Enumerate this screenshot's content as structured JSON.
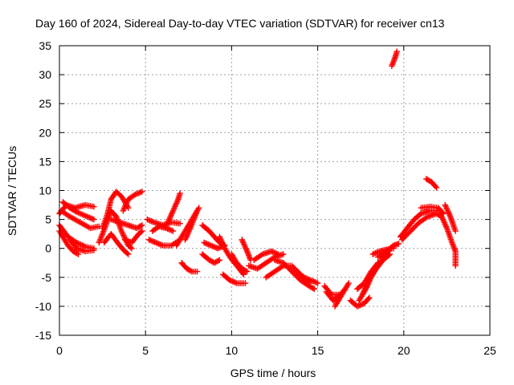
{
  "chart_data": {
    "type": "scatter",
    "title": "Day 160 of 2024, Sidereal Day-to-day VTEC variation (SDTVAR) for receiver cn13",
    "xlabel": "GPS time / hours",
    "ylabel": "SDTVAR / TECUs",
    "xlim": [
      0,
      25
    ],
    "ylim": [
      -15,
      35
    ],
    "xticks": [
      "0",
      "5",
      "10",
      "15",
      "20",
      "25"
    ],
    "yticks": [
      "-15",
      "-10",
      "-5",
      "0",
      "5",
      "10",
      "15",
      "20",
      "25",
      "30",
      "35"
    ],
    "grid": true,
    "marker": "+",
    "series": [
      {
        "name": "SDTVAR",
        "color": "#ff0000",
        "tracks": [
          [
            [
              0.0,
              6.0
            ],
            [
              0.4,
              7.5
            ],
            [
              0.9,
              7.0
            ],
            [
              1.5,
              7.5
            ],
            [
              2.0,
              7.2
            ]
          ],
          [
            [
              0.0,
              4.0
            ],
            [
              0.5,
              2.0
            ],
            [
              1.0,
              1.0
            ],
            [
              1.5,
              0.3
            ],
            [
              2.0,
              0.0
            ]
          ],
          [
            [
              0.0,
              3.0
            ],
            [
              0.5,
              0.5
            ],
            [
              0.8,
              -0.5
            ],
            [
              1.1,
              -1.0
            ]
          ],
          [
            [
              0.1,
              6.5
            ],
            [
              0.6,
              5.5
            ],
            [
              1.2,
              4.5
            ],
            [
              1.8,
              3.5
            ],
            [
              2.3,
              3.8
            ]
          ],
          [
            [
              0.2,
              8.0
            ],
            [
              0.6,
              7.0
            ],
            [
              1.0,
              6.3
            ],
            [
              1.6,
              5.5
            ],
            [
              2.0,
              5.0
            ]
          ],
          [
            [
              0.6,
              1.5
            ],
            [
              1.0,
              0.0
            ],
            [
              1.5,
              -0.5
            ],
            [
              2.0,
              -0.3
            ]
          ],
          [
            [
              2.5,
              3.5
            ],
            [
              2.8,
              6.0
            ],
            [
              3.0,
              8.5
            ],
            [
              3.3,
              9.8
            ],
            [
              3.6,
              9.0
            ],
            [
              4.0,
              7.0
            ]
          ],
          [
            [
              2.3,
              1.0
            ],
            [
              2.7,
              4.0
            ],
            [
              3.0,
              6.5
            ],
            [
              3.3,
              5.5
            ],
            [
              3.6,
              3.0
            ],
            [
              4.0,
              0.5
            ],
            [
              4.2,
              0.0
            ]
          ],
          [
            [
              2.6,
              1.0
            ],
            [
              3.0,
              2.5
            ],
            [
              3.5,
              0.5
            ],
            [
              3.8,
              -0.5
            ],
            [
              4.0,
              -1.0
            ]
          ],
          [
            [
              3.0,
              5.0
            ],
            [
              3.5,
              4.5
            ],
            [
              4.0,
              4.0
            ],
            [
              4.5,
              3.5
            ],
            [
              4.8,
              4.0
            ]
          ],
          [
            [
              3.7,
              6.5
            ],
            [
              4.0,
              8.5
            ],
            [
              4.4,
              9.3
            ],
            [
              4.8,
              9.8
            ]
          ],
          [
            [
              3.8,
              1.5
            ],
            [
              4.2,
              1.0
            ],
            [
              4.6,
              2.5
            ],
            [
              4.8,
              3.0
            ]
          ],
          [
            [
              5.1,
              5.0
            ],
            [
              5.5,
              4.5
            ],
            [
              6.0,
              4.0
            ],
            [
              6.5,
              4.5
            ],
            [
              7.0,
              4.3
            ]
          ],
          [
            [
              5.2,
              1.5
            ],
            [
              5.6,
              1.0
            ],
            [
              6.0,
              0.5
            ],
            [
              6.5,
              0.5
            ],
            [
              7.0,
              1.5
            ]
          ],
          [
            [
              5.4,
              3.0
            ],
            [
              5.8,
              3.8
            ],
            [
              6.2,
              3.5
            ],
            [
              6.6,
              3.0
            ]
          ],
          [
            [
              6.3,
              4.5
            ],
            [
              6.6,
              6.5
            ],
            [
              6.9,
              8.5
            ],
            [
              7.0,
              9.5
            ]
          ],
          [
            [
              6.8,
              0.5
            ],
            [
              7.2,
              2.5
            ],
            [
              7.6,
              4.5
            ],
            [
              7.9,
              6.0
            ],
            [
              8.1,
              7.0
            ]
          ],
          [
            [
              7.3,
              1.5
            ],
            [
              7.6,
              3.5
            ],
            [
              7.8,
              5.0
            ],
            [
              8.0,
              6.5
            ]
          ],
          [
            [
              7.1,
              -2.5
            ],
            [
              7.4,
              -3.5
            ],
            [
              7.7,
              -4.0
            ],
            [
              8.0,
              -4.0
            ]
          ],
          [
            [
              8.3,
              4.0
            ],
            [
              8.7,
              3.0
            ],
            [
              9.0,
              2.0
            ],
            [
              9.3,
              1.0
            ],
            [
              9.6,
              0.5
            ]
          ],
          [
            [
              8.4,
              1.0
            ],
            [
              8.8,
              0.5
            ],
            [
              9.2,
              0.0
            ],
            [
              9.6,
              0.5
            ]
          ],
          [
            [
              8.3,
              -1.0
            ],
            [
              8.7,
              -2.0
            ],
            [
              9.0,
              -2.5
            ],
            [
              9.3,
              -2.0
            ]
          ],
          [
            [
              9.3,
              2.0
            ],
            [
              9.6,
              0.0
            ],
            [
              9.9,
              -1.5
            ],
            [
              10.3,
              -3.0
            ],
            [
              10.7,
              -4.5
            ]
          ],
          [
            [
              9.5,
              -4.5
            ],
            [
              9.9,
              -5.5
            ],
            [
              10.3,
              -6.0
            ],
            [
              10.8,
              -6.0
            ]
          ],
          [
            [
              10.0,
              -1.0
            ],
            [
              10.3,
              -2.5
            ],
            [
              10.6,
              -3.5
            ],
            [
              10.9,
              -4.0
            ]
          ],
          [
            [
              10.6,
              1.5
            ],
            [
              10.9,
              -0.5
            ],
            [
              11.1,
              -2.0
            ]
          ],
          [
            [
              11.0,
              -3.0
            ],
            [
              11.5,
              -3.5
            ],
            [
              12.0,
              -2.5
            ],
            [
              12.5,
              -1.5
            ],
            [
              13.0,
              -1.0
            ]
          ],
          [
            [
              11.3,
              -2.0
            ],
            [
              11.8,
              -1.0
            ],
            [
              12.3,
              -0.5
            ],
            [
              12.7,
              -1.0
            ]
          ],
          [
            [
              12.0,
              -5.0
            ],
            [
              12.5,
              -4.0
            ],
            [
              13.0,
              -3.0
            ],
            [
              13.5,
              -3.0
            ],
            [
              14.0,
              -4.5
            ],
            [
              14.5,
              -6.0
            ]
          ],
          [
            [
              12.5,
              -2.0
            ],
            [
              13.0,
              -2.5
            ],
            [
              13.5,
              -4.0
            ],
            [
              14.0,
              -5.5
            ],
            [
              14.5,
              -6.5
            ],
            [
              14.8,
              -7.0
            ]
          ],
          [
            [
              13.8,
              -4.0
            ],
            [
              14.2,
              -5.0
            ],
            [
              14.6,
              -5.5
            ],
            [
              15.0,
              -6.0
            ]
          ],
          [
            [
              15.4,
              -6.5
            ],
            [
              15.8,
              -8.0
            ],
            [
              16.2,
              -8.0
            ]
          ],
          [
            [
              15.5,
              -7.5
            ],
            [
              15.9,
              -9.0
            ],
            [
              16.3,
              -8.0
            ],
            [
              16.6,
              -7.0
            ]
          ],
          [
            [
              16.0,
              -10.0
            ],
            [
              16.3,
              -8.5
            ],
            [
              16.6,
              -7.0
            ],
            [
              16.8,
              -6.0
            ]
          ],
          [
            [
              16.9,
              -9.0
            ],
            [
              17.3,
              -10.0
            ],
            [
              17.7,
              -9.5
            ],
            [
              18.0,
              -8.5
            ]
          ],
          [
            [
              17.4,
              -9.0
            ],
            [
              17.8,
              -7.0
            ],
            [
              18.1,
              -5.0
            ],
            [
              18.5,
              -3.0
            ],
            [
              18.8,
              -1.5
            ],
            [
              19.1,
              -0.5
            ]
          ],
          [
            [
              17.6,
              -8.0
            ],
            [
              18.0,
              -5.0
            ],
            [
              18.4,
              -3.5
            ],
            [
              18.8,
              -2.0
            ],
            [
              19.2,
              -1.0
            ]
          ],
          [
            [
              17.3,
              -7.0
            ],
            [
              17.7,
              -6.0
            ],
            [
              18.1,
              -4.0
            ],
            [
              18.5,
              -2.5
            ]
          ],
          [
            [
              18.5,
              -1.5
            ],
            [
              19.0,
              -0.5
            ],
            [
              19.4,
              0.5
            ],
            [
              19.7,
              0.8
            ]
          ],
          [
            [
              18.2,
              -1.0
            ],
            [
              18.6,
              -0.5
            ],
            [
              19.0,
              -0.2
            ],
            [
              19.4,
              0.0
            ]
          ],
          [
            [
              19.8,
              2.0
            ],
            [
              20.2,
              3.5
            ],
            [
              20.6,
              5.0
            ],
            [
              21.0,
              6.0
            ],
            [
              21.5,
              6.5
            ],
            [
              21.9,
              6.5
            ]
          ],
          [
            [
              19.9,
              1.5
            ],
            [
              20.4,
              3.0
            ],
            [
              20.9,
              4.5
            ],
            [
              21.4,
              5.5
            ],
            [
              21.9,
              6.0
            ],
            [
              22.2,
              5.5
            ],
            [
              22.5,
              3.5
            ],
            [
              22.8,
              1.0
            ],
            [
              23.0,
              -0.5
            ],
            [
              23.0,
              -3.0
            ]
          ],
          [
            [
              21.0,
              7.0
            ],
            [
              21.5,
              7.2
            ],
            [
              22.0,
              7.0
            ],
            [
              22.3,
              6.0
            ]
          ],
          [
            [
              21.3,
              12.0
            ],
            [
              21.6,
              11.5
            ],
            [
              21.9,
              10.5
            ]
          ],
          [
            [
              22.4,
              7.5
            ],
            [
              22.7,
              5.5
            ],
            [
              23.0,
              3.0
            ]
          ],
          [
            [
              19.3,
              31.5
            ],
            [
              19.5,
              33.0
            ],
            [
              19.6,
              34.0
            ]
          ]
        ]
      }
    ]
  }
}
